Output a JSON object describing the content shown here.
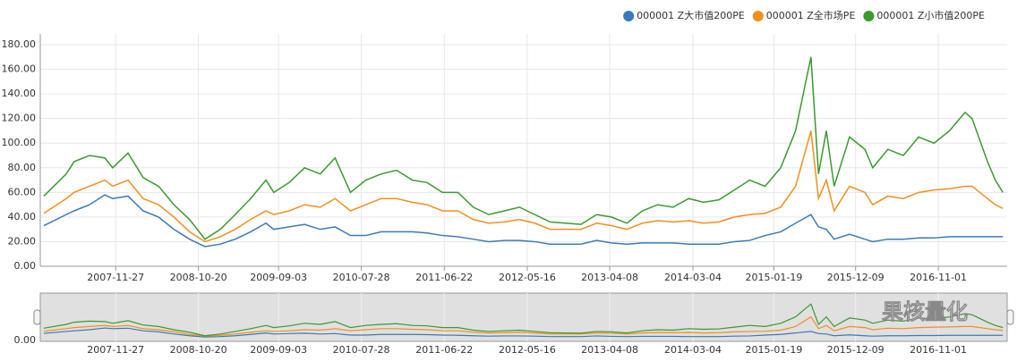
{
  "chart_data": {
    "type": "line",
    "x": [
      "2007-02-15",
      "2007-05-15",
      "2007-06-15",
      "2007-08-15",
      "2007-10-15",
      "2007-11-15",
      "2008-01-15",
      "2008-03-15",
      "2008-05-15",
      "2008-07-15",
      "2008-09-15",
      "2008-11-15",
      "2009-01-15",
      "2009-03-15",
      "2009-05-15",
      "2009-07-15",
      "2009-08-15",
      "2009-10-15",
      "2009-12-15",
      "2010-02-15",
      "2010-04-15",
      "2010-06-15",
      "2010-08-15",
      "2010-10-15",
      "2010-12-15",
      "2011-02-15",
      "2011-04-15",
      "2011-06-15",
      "2011-08-15",
      "2011-10-15",
      "2011-12-15",
      "2012-02-15",
      "2012-04-15",
      "2012-06-15",
      "2012-08-15",
      "2012-10-15",
      "2012-12-15",
      "2013-02-15",
      "2013-04-15",
      "2013-06-15",
      "2013-08-15",
      "2013-10-15",
      "2013-12-15",
      "2014-02-15",
      "2014-04-15",
      "2014-06-15",
      "2014-08-15",
      "2014-10-15",
      "2014-12-15",
      "2015-02-15",
      "2015-04-15",
      "2015-06-15",
      "2015-07-15",
      "2015-08-15",
      "2015-09-15",
      "2015-11-15",
      "2016-01-15",
      "2016-02-15",
      "2016-04-15",
      "2016-06-15",
      "2016-08-15",
      "2016-10-15",
      "2016-12-15",
      "2017-02-15",
      "2017-03-15",
      "2017-05-15",
      "2017-06-15",
      "2017-07-15"
    ],
    "series": [
      {
        "name": "000001 Z大市值200PE",
        "color": "#3a7ab8",
        "values": [
          33,
          42,
          45,
          50,
          58,
          55,
          57,
          45,
          40,
          30,
          22,
          16,
          18,
          22,
          28,
          35,
          30,
          32,
          34,
          30,
          32,
          25,
          25,
          28,
          28,
          28,
          27,
          25,
          24,
          22,
          20,
          21,
          21,
          20,
          18,
          18,
          18,
          21,
          19,
          18,
          19,
          19,
          19,
          18,
          18,
          18,
          20,
          21,
          25,
          28,
          35,
          42,
          32,
          30,
          22,
          26,
          22,
          20,
          22,
          22,
          23,
          23,
          24,
          24,
          24,
          24,
          24,
          24
        ]
      },
      {
        "name": "000001 Z全市场PE",
        "color": "#f28e1e",
        "values": [
          43,
          55,
          60,
          65,
          70,
          65,
          70,
          55,
          50,
          40,
          28,
          20,
          24,
          30,
          38,
          45,
          42,
          45,
          50,
          48,
          55,
          45,
          50,
          55,
          55,
          52,
          50,
          45,
          45,
          38,
          35,
          36,
          38,
          35,
          30,
          30,
          30,
          35,
          33,
          30,
          35,
          37,
          36,
          37,
          35,
          36,
          40,
          42,
          43,
          48,
          65,
          110,
          55,
          70,
          45,
          65,
          60,
          50,
          57,
          55,
          60,
          62,
          63,
          65,
          65,
          55,
          50,
          47
        ]
      },
      {
        "name": "000001 Z小市值200PE",
        "color": "#3a9a2e",
        "values": [
          57,
          75,
          85,
          90,
          88,
          80,
          92,
          72,
          65,
          50,
          38,
          22,
          30,
          42,
          55,
          70,
          60,
          68,
          80,
          75,
          88,
          60,
          70,
          75,
          78,
          70,
          68,
          60,
          60,
          48,
          42,
          45,
          48,
          42,
          36,
          35,
          34,
          42,
          40,
          35,
          45,
          50,
          48,
          55,
          52,
          54,
          62,
          70,
          65,
          80,
          110,
          170,
          75,
          110,
          65,
          105,
          95,
          80,
          95,
          90,
          105,
          100,
          110,
          125,
          120,
          85,
          70,
          60
        ]
      }
    ],
    "xlim": [
      "2007-02-01",
      "2017-08-01"
    ],
    "xticks": [
      "2007-11-27",
      "2008-10-20",
      "2009-09-03",
      "2010-07-28",
      "2011-06-22",
      "2012-05-16",
      "2013-04-08",
      "2014-03-04",
      "2015-01-19",
      "2015-12-09",
      "2016-11-01"
    ],
    "ylim": [
      0,
      180
    ],
    "yticks": [
      {
        "value": 0,
        "label": "0.00"
      },
      {
        "value": 20,
        "label": "20.00"
      },
      {
        "value": 40,
        "label": "40.00"
      },
      {
        "value": 60,
        "label": "60.00"
      },
      {
        "value": 80,
        "label": "80.00"
      },
      {
        "value": 100,
        "label": "100.00"
      },
      {
        "value": 120,
        "label": "120.00"
      },
      {
        "value": 140,
        "label": "140.00"
      },
      {
        "value": 160,
        "label": "160.00"
      },
      {
        "value": 180,
        "label": "180.00"
      }
    ],
    "grid": true,
    "watermark": "果核量化"
  }
}
